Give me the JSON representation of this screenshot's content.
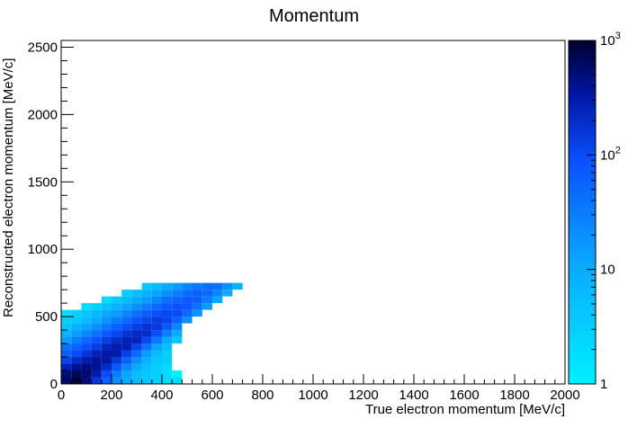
{
  "chart_data": {
    "type": "heatmap",
    "title": "Momentum",
    "xlabel": "True electron momentum [MeV/c]",
    "ylabel": "Reconstructed electron momentum [MeV/c]",
    "xlim": [
      0,
      2000
    ],
    "ylim": [
      0,
      2550
    ],
    "x_ticks": [
      0,
      200,
      400,
      600,
      800,
      1000,
      1200,
      1400,
      1600,
      1800,
      2000
    ],
    "y_ticks": [
      0,
      500,
      1000,
      1500,
      2000,
      2500
    ],
    "x_tick_labels": [
      "0",
      "200",
      "400",
      "600",
      "800",
      "1000",
      "1200",
      "1400",
      "1600",
      "1800",
      "2000"
    ],
    "y_tick_labels": [
      "0",
      "500",
      "1000",
      "1500",
      "2000",
      "2500"
    ],
    "bin_width_x": 40,
    "bin_width_y": 50,
    "z_scale": "log",
    "z_range": [
      1,
      1000
    ],
    "colorbar_labels": [
      {
        "base": "1",
        "exp": "",
        "value": 1
      },
      {
        "base": "10",
        "exp": "",
        "value": 10
      },
      {
        "base": "10",
        "exp": "2",
        "value": 100
      },
      {
        "base": "10",
        "exp": "3",
        "value": 1000
      }
    ],
    "colors": {
      "low": "#00f0ff",
      "mid": "#0a50ff",
      "high": "#000030"
    },
    "grid": false,
    "legend": "none",
    "bins": [
      [
        20,
        25,
        600
      ],
      [
        60,
        25,
        900
      ],
      [
        100,
        25,
        500
      ],
      [
        140,
        25,
        160
      ],
      [
        180,
        25,
        60
      ],
      [
        220,
        25,
        20
      ],
      [
        260,
        25,
        10
      ],
      [
        300,
        25,
        5
      ],
      [
        340,
        25,
        4
      ],
      [
        380,
        25,
        3
      ],
      [
        420,
        25,
        2
      ],
      [
        460,
        25,
        2
      ],
      [
        20,
        75,
        500
      ],
      [
        60,
        75,
        700
      ],
      [
        100,
        75,
        600
      ],
      [
        140,
        75,
        300
      ],
      [
        180,
        75,
        100
      ],
      [
        220,
        75,
        30
      ],
      [
        260,
        75,
        12
      ],
      [
        300,
        75,
        6
      ],
      [
        340,
        75,
        4
      ],
      [
        380,
        75,
        3
      ],
      [
        420,
        75,
        2
      ],
      [
        460,
        75,
        1
      ],
      [
        20,
        125,
        250
      ],
      [
        60,
        125,
        400
      ],
      [
        100,
        125,
        500
      ],
      [
        140,
        125,
        400
      ],
      [
        180,
        125,
        200
      ],
      [
        220,
        125,
        70
      ],
      [
        260,
        125,
        25
      ],
      [
        300,
        125,
        10
      ],
      [
        340,
        125,
        5
      ],
      [
        380,
        125,
        3
      ],
      [
        420,
        125,
        2
      ],
      [
        20,
        175,
        120
      ],
      [
        60,
        175,
        200
      ],
      [
        100,
        175,
        300
      ],
      [
        140,
        175,
        380
      ],
      [
        180,
        175,
        320
      ],
      [
        220,
        175,
        150
      ],
      [
        260,
        175,
        60
      ],
      [
        300,
        175,
        20
      ],
      [
        340,
        175,
        8
      ],
      [
        380,
        175,
        4
      ],
      [
        420,
        175,
        3
      ],
      [
        20,
        225,
        60
      ],
      [
        60,
        225,
        100
      ],
      [
        100,
        225,
        160
      ],
      [
        140,
        225,
        250
      ],
      [
        180,
        225,
        330
      ],
      [
        220,
        225,
        300
      ],
      [
        260,
        225,
        130
      ],
      [
        300,
        225,
        50
      ],
      [
        340,
        225,
        15
      ],
      [
        380,
        225,
        6
      ],
      [
        420,
        225,
        3
      ],
      [
        20,
        275,
        40
      ],
      [
        60,
        275,
        60
      ],
      [
        100,
        275,
        90
      ],
      [
        140,
        275,
        140
      ],
      [
        180,
        275,
        230
      ],
      [
        220,
        275,
        300
      ],
      [
        260,
        275,
        280
      ],
      [
        300,
        275,
        120
      ],
      [
        340,
        275,
        40
      ],
      [
        380,
        275,
        12
      ],
      [
        420,
        275,
        5
      ],
      [
        20,
        325,
        15
      ],
      [
        60,
        325,
        30
      ],
      [
        100,
        325,
        50
      ],
      [
        140,
        325,
        80
      ],
      [
        180,
        325,
        130
      ],
      [
        220,
        325,
        200
      ],
      [
        260,
        325,
        260
      ],
      [
        300,
        325,
        250
      ],
      [
        340,
        325,
        110
      ],
      [
        380,
        325,
        35
      ],
      [
        420,
        325,
        10
      ],
      [
        460,
        325,
        4
      ],
      [
        20,
        375,
        8
      ],
      [
        60,
        375,
        15
      ],
      [
        100,
        375,
        25
      ],
      [
        140,
        375,
        40
      ],
      [
        180,
        375,
        70
      ],
      [
        220,
        375,
        110
      ],
      [
        260,
        375,
        170
      ],
      [
        300,
        375,
        220
      ],
      [
        340,
        375,
        200
      ],
      [
        380,
        375,
        90
      ],
      [
        420,
        375,
        30
      ],
      [
        460,
        375,
        10
      ],
      [
        20,
        425,
        4
      ],
      [
        60,
        425,
        8
      ],
      [
        100,
        425,
        12
      ],
      [
        140,
        425,
        20
      ],
      [
        180,
        425,
        35
      ],
      [
        220,
        425,
        60
      ],
      [
        260,
        425,
        90
      ],
      [
        300,
        425,
        130
      ],
      [
        340,
        425,
        170
      ],
      [
        380,
        425,
        150
      ],
      [
        420,
        425,
        70
      ],
      [
        460,
        425,
        25
      ],
      [
        20,
        475,
        3
      ],
      [
        60,
        475,
        4
      ],
      [
        100,
        475,
        6
      ],
      [
        140,
        475,
        10
      ],
      [
        180,
        475,
        18
      ],
      [
        220,
        475,
        30
      ],
      [
        260,
        475,
        50
      ],
      [
        300,
        475,
        80
      ],
      [
        340,
        475,
        110
      ],
      [
        380,
        475,
        140
      ],
      [
        420,
        475,
        120
      ],
      [
        460,
        475,
        60
      ],
      [
        500,
        475,
        20
      ],
      [
        20,
        525,
        2
      ],
      [
        60,
        525,
        3
      ],
      [
        100,
        525,
        4
      ],
      [
        140,
        525,
        6
      ],
      [
        180,
        525,
        10
      ],
      [
        220,
        525,
        15
      ],
      [
        260,
        525,
        25
      ],
      [
        300,
        525,
        40
      ],
      [
        340,
        525,
        60
      ],
      [
        380,
        525,
        90
      ],
      [
        420,
        525,
        110
      ],
      [
        460,
        525,
        100
      ],
      [
        500,
        525,
        50
      ],
      [
        540,
        525,
        18
      ],
      [
        100,
        575,
        2
      ],
      [
        140,
        575,
        3
      ],
      [
        180,
        575,
        5
      ],
      [
        220,
        575,
        8
      ],
      [
        260,
        575,
        12
      ],
      [
        300,
        575,
        20
      ],
      [
        340,
        575,
        30
      ],
      [
        380,
        575,
        50
      ],
      [
        420,
        575,
        70
      ],
      [
        460,
        575,
        90
      ],
      [
        500,
        575,
        80
      ],
      [
        540,
        575,
        40
      ],
      [
        580,
        575,
        15
      ],
      [
        180,
        625,
        2
      ],
      [
        220,
        625,
        4
      ],
      [
        260,
        625,
        6
      ],
      [
        300,
        625,
        10
      ],
      [
        340,
        625,
        15
      ],
      [
        380,
        625,
        25
      ],
      [
        420,
        625,
        40
      ],
      [
        460,
        625,
        55
      ],
      [
        500,
        625,
        70
      ],
      [
        540,
        625,
        60
      ],
      [
        580,
        625,
        30
      ],
      [
        620,
        625,
        12
      ],
      [
        260,
        675,
        3
      ],
      [
        300,
        675,
        5
      ],
      [
        340,
        675,
        8
      ],
      [
        380,
        675,
        12
      ],
      [
        420,
        675,
        20
      ],
      [
        460,
        675,
        30
      ],
      [
        500,
        675,
        45
      ],
      [
        540,
        675,
        60
      ],
      [
        580,
        675,
        50
      ],
      [
        620,
        675,
        25
      ],
      [
        660,
        675,
        10
      ],
      [
        340,
        725,
        4
      ],
      [
        380,
        725,
        6
      ],
      [
        420,
        725,
        10
      ],
      [
        460,
        725,
        15
      ],
      [
        500,
        725,
        25
      ],
      [
        540,
        725,
        35
      ],
      [
        580,
        725,
        45
      ],
      [
        620,
        725,
        40
      ],
      [
        660,
        725,
        20
      ],
      [
        700,
        725,
        8
      ]
    ]
  }
}
